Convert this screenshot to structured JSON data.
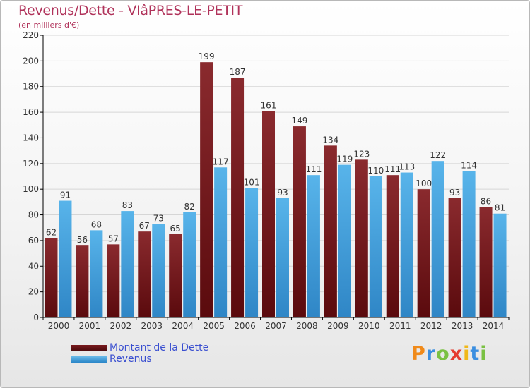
{
  "title": "Revenus/Dette - VIâPRES-LE-PETIT",
  "subtitle": "(en milliers d'€)",
  "legend": [
    {
      "label": "Montant de la Dette",
      "color": "#6e1216"
    },
    {
      "label": "Revenus",
      "color": "#3d9ad8"
    }
  ],
  "logo": {
    "text": "Proxiti",
    "letters": [
      "P",
      "r",
      "o",
      "x",
      "i",
      "t",
      "i"
    ]
  },
  "colors": {
    "dette_top": "#8a2a2e",
    "dette_bottom": "#5a0a0d",
    "rev_top": "#58b4ea",
    "rev_bottom": "#2f86c6",
    "grid": "#d6d6d6",
    "axis": "#000000",
    "text": "#333333"
  },
  "chart_data": {
    "type": "bar",
    "categories": [
      "2000",
      "2001",
      "2002",
      "2003",
      "2004",
      "2005",
      "2006",
      "2007",
      "2008",
      "2009",
      "2010",
      "2011",
      "2012",
      "2013",
      "2014"
    ],
    "series": [
      {
        "name": "Montant de la Dette",
        "values": [
          62,
          56,
          57,
          67,
          65,
          199,
          187,
          161,
          149,
          134,
          123,
          111,
          100,
          93,
          86
        ]
      },
      {
        "name": "Revenus",
        "values": [
          91,
          68,
          83,
          73,
          82,
          117,
          101,
          93,
          111,
          119,
          110,
          113,
          122,
          114,
          81
        ]
      }
    ],
    "yticks": [
      0,
      20,
      40,
      60,
      80,
      100,
      120,
      140,
      160,
      180,
      200,
      220
    ],
    "ylim": [
      0,
      220
    ],
    "grid": true,
    "legend_position": "bottom-left"
  }
}
